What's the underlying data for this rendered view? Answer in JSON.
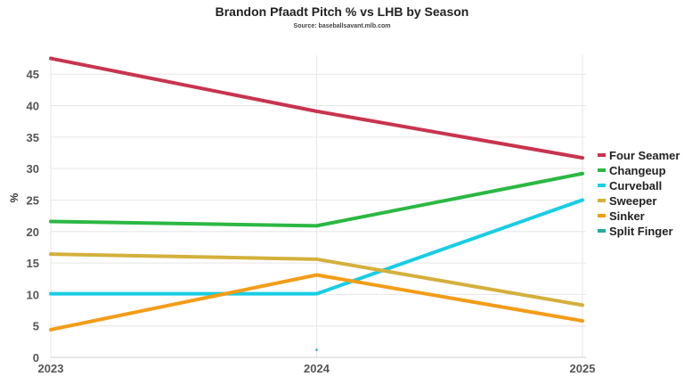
{
  "chart_data": {
    "type": "line",
    "title": "Brandon Pfaadt Pitch % vs LHB by Season",
    "subtitle": "Source: baseballsavant.mlb.com",
    "xlabel": "",
    "ylabel": "%",
    "categories": [
      "2023",
      "2024",
      "2025"
    ],
    "ylim": [
      0,
      48
    ],
    "yticks": [
      0,
      5,
      10,
      15,
      20,
      25,
      30,
      35,
      40,
      45
    ],
    "grid": true,
    "legend_position": "right",
    "series": [
      {
        "name": "Four Seamer",
        "color": "#c8344e",
        "values": [
          47.5,
          39.1,
          31.7
        ]
      },
      {
        "name": "Changeup",
        "color": "#2bb843",
        "values": [
          21.6,
          20.9,
          29.2
        ]
      },
      {
        "name": "Curveball",
        "color": "#19cde4",
        "values": [
          10.1,
          10.1,
          25.0
        ]
      },
      {
        "name": "Sweeper",
        "color": "#d4b03c",
        "values": [
          16.4,
          15.6,
          8.3
        ]
      },
      {
        "name": "Sinker",
        "color": "#f39c18",
        "values": [
          4.4,
          13.1,
          5.8
        ]
      },
      {
        "name": "Split Finger",
        "color": "#2aa8a2",
        "values": [
          null,
          1.2,
          null
        ]
      }
    ]
  }
}
